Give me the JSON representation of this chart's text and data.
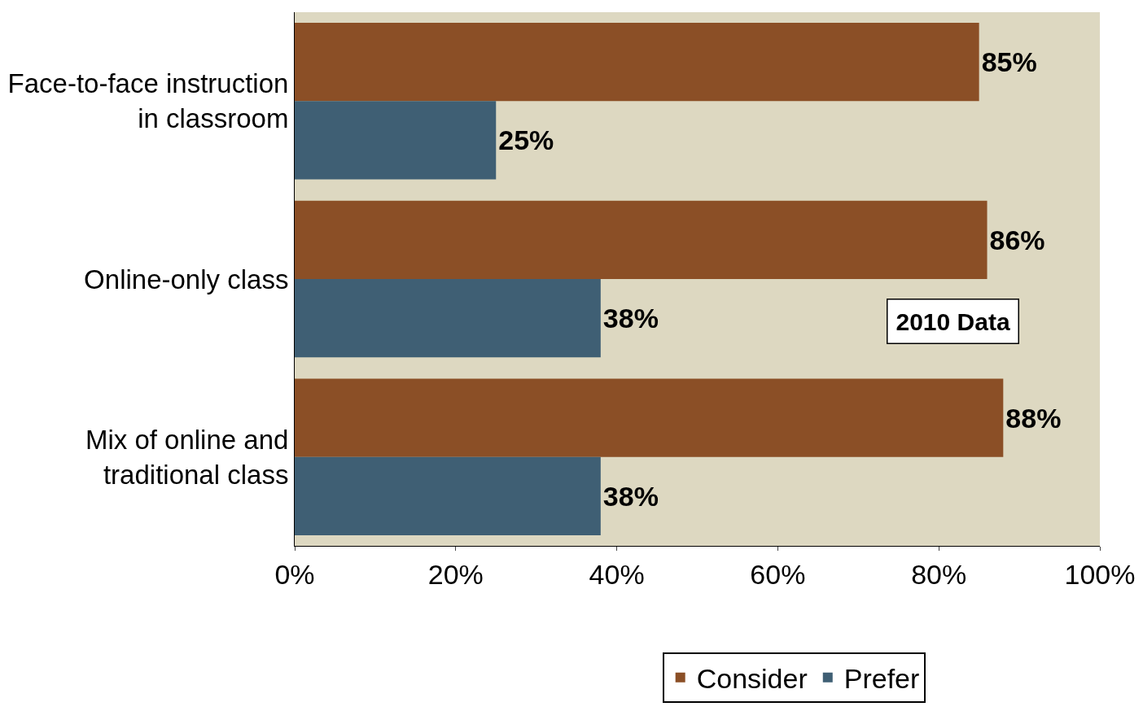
{
  "chart_data": {
    "type": "bar",
    "orientation": "horizontal",
    "categories": [
      "Face-to-face instruction in classroom",
      "Online-only class",
      "Mix of online and traditional class"
    ],
    "series": [
      {
        "name": "Consider",
        "color": "#8b4f26",
        "values": [
          85,
          86,
          88
        ],
        "value_labels": [
          "85%",
          "86%",
          "88%"
        ]
      },
      {
        "name": "Prefer",
        "color": "#3f5f74",
        "values": [
          25,
          38,
          38
        ],
        "value_labels": [
          "25%",
          "38%",
          "38%"
        ]
      }
    ],
    "xlim": [
      0,
      100
    ],
    "xticks": [
      {
        "value": 0,
        "label": "0%"
      },
      {
        "value": 20,
        "label": "20%"
      },
      {
        "value": 40,
        "label": "40%"
      },
      {
        "value": 60,
        "label": "60%"
      },
      {
        "value": 80,
        "label": "80%"
      },
      {
        "value": 100,
        "label": "100%"
      }
    ],
    "annotations": [
      "2010 Data"
    ],
    "legend": "bottom",
    "grid": false
  }
}
